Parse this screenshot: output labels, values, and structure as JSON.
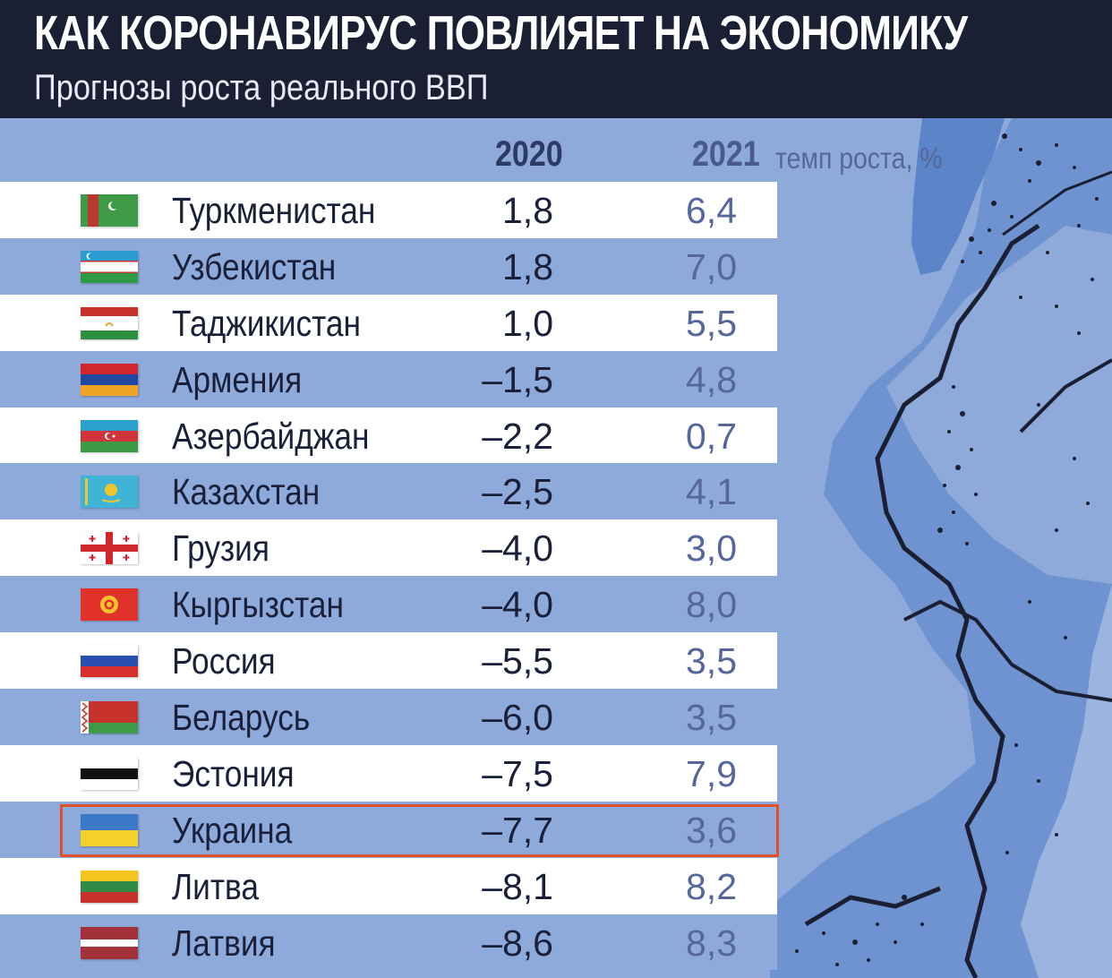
{
  "header": {
    "title": "КАК КОРОНАВИРУС ПОВЛИЯЕТ НА ЭКОНОМИКУ",
    "subtitle": "Прогнозы роста реального ВВП"
  },
  "columns": {
    "year_2020": "2020",
    "year_2021": "2021",
    "unit": "темп роста, %"
  },
  "highlighted_country": "Украина",
  "colors": {
    "header_bg": "#1b1f33",
    "blue_row": "#8eaadb",
    "white_row": "#ffffff",
    "highlight_border": "#e0502a",
    "decor_dark": "#1b1f33",
    "decor_mid": "#5c84c8"
  },
  "chart_data": {
    "type": "table",
    "title": "КАК КОРОНАВИРУС ПОВЛИЯЕТ НА ЭКОНОМИКУ",
    "subtitle": "Прогнозы роста реального ВВП",
    "columns": [
      "2020",
      "2021"
    ],
    "rows": [
      {
        "country": "Туркменистан",
        "flag": "turkmenistan-flag",
        "v2020": "1,8",
        "v2021": "6,4"
      },
      {
        "country": "Узбекистан",
        "flag": "uzbekistan-flag",
        "v2020": "1,8",
        "v2021": "7,0"
      },
      {
        "country": "Таджикистан",
        "flag": "tajikistan-flag",
        "v2020": "1,0",
        "v2021": "5,5"
      },
      {
        "country": "Армения",
        "flag": "armenia-flag",
        "v2020": "–1,5",
        "v2021": "4,8"
      },
      {
        "country": "Азербайджан",
        "flag": "azerbaijan-flag",
        "v2020": "–2,2",
        "v2021": "0,7"
      },
      {
        "country": "Казахстан",
        "flag": "kazakhstan-flag",
        "v2020": "–2,5",
        "v2021": "4,1"
      },
      {
        "country": "Грузия",
        "flag": "georgia-flag",
        "v2020": "–4,0",
        "v2021": "3,0"
      },
      {
        "country": "Кыргызстан",
        "flag": "kyrgyzstan-flag",
        "v2020": "–4,0",
        "v2021": "8,0"
      },
      {
        "country": "Россия",
        "flag": "russia-flag",
        "v2020": "–5,5",
        "v2021": "3,5"
      },
      {
        "country": "Беларусь",
        "flag": "belarus-flag",
        "v2020": "–6,0",
        "v2021": "3,5"
      },
      {
        "country": "Эстония",
        "flag": "estonia-flag",
        "v2020": "–7,5",
        "v2021": "7,9"
      },
      {
        "country": "Украина",
        "flag": "ukraine-flag",
        "v2020": "–7,7",
        "v2021": "3,6"
      },
      {
        "country": "Литва",
        "flag": "lithuania-flag",
        "v2020": "–8,1",
        "v2021": "8,2"
      },
      {
        "country": "Латвия",
        "flag": "latvia-flag",
        "v2020": "–8,6",
        "v2021": "8,3"
      }
    ]
  }
}
